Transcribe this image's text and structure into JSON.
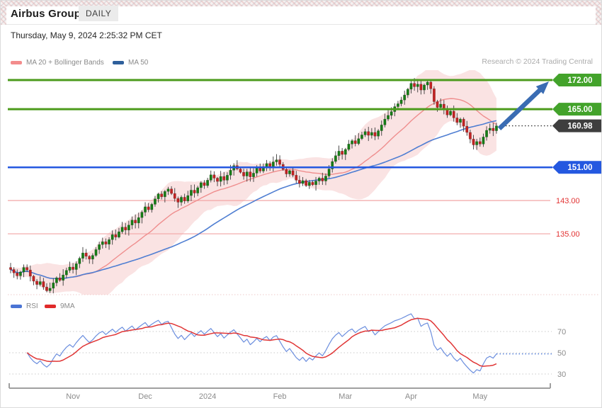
{
  "header": {
    "title": "Airbus Group",
    "timeframe_badge": "DAILY",
    "datetime": "Thursday, May 9, 2024 2:25:32 PM CET",
    "watermark": "Research © 2024 Trading Central"
  },
  "legend_main": [
    {
      "label": "MA 20 + Bollinger Bands",
      "color": "#f38c8c"
    },
    {
      "label": "MA 50",
      "color": "#2e5f9b"
    }
  ],
  "legend_rsi": [
    {
      "label": "RSI",
      "color": "#4a74d4"
    },
    {
      "label": "9MA",
      "color": "#e02a2a"
    }
  ],
  "chart_data": {
    "type": "candlestick+rsi",
    "symbol": "Airbus Group",
    "interval": "DAILY",
    "price_axis_visible_range": [
      120,
      174
    ],
    "x_axis_labels": [
      {
        "text": "Nov",
        "day": 19
      },
      {
        "text": "Dec",
        "day": 41
      },
      {
        "text": "2024",
        "day": 60
      },
      {
        "text": "Feb",
        "day": 82
      },
      {
        "text": "Mar",
        "day": 102
      },
      {
        "text": "Apr",
        "day": 122
      },
      {
        "text": "May",
        "day": 143
      }
    ],
    "closes": [
      126.4,
      125.6,
      124.9,
      125.8,
      126.9,
      126.3,
      124.8,
      123.6,
      122.8,
      123.5,
      122.2,
      121.3,
      121.9,
      123.2,
      124.4,
      123.8,
      125.1,
      126.2,
      127.0,
      126.4,
      127.8,
      129.1,
      130.4,
      129.6,
      128.9,
      129.8,
      131.2,
      132.4,
      133.1,
      132.5,
      133.6,
      134.8,
      134.2,
      135.5,
      136.6,
      135.9,
      137.1,
      138.3,
      137.6,
      138.9,
      140.2,
      141.5,
      140.8,
      142.1,
      143.4,
      144.6,
      143.9,
      145.2,
      145.8,
      144.7,
      143.5,
      142.6,
      143.8,
      142.9,
      144.2,
      145.5,
      144.8,
      146.1,
      147.3,
      146.6,
      147.9,
      149.2,
      148.4,
      147.6,
      148.8,
      147.9,
      149.1,
      150.3,
      151.4,
      150.6,
      149.8,
      148.9,
      149.9,
      148.7,
      149.6,
      150.8,
      150.1,
      151.2,
      151.9,
      151.1,
      152.3,
      152.8,
      151.7,
      150.5,
      149.4,
      150.2,
      149.1,
      147.9,
      147.1,
      147.8,
      146.6,
      147.4,
      146.8,
      147.7,
      148.4,
      147.7,
      148.9,
      150.6,
      152.4,
      153.8,
      154.9,
      154.1,
      155.3,
      156.6,
      157.4,
      156.7,
      157.9,
      158.8,
      159.6,
      158.7,
      159.4,
      158.5,
      159.8,
      161.2,
      162.6,
      163.5,
      164.4,
      165.6,
      166.3,
      167.2,
      168.4,
      169.8,
      171.2,
      170.4,
      171.0,
      169.6,
      170.8,
      171.5,
      169.9,
      166.8,
      165.4,
      166.2,
      164.8,
      163.6,
      164.5,
      162.9,
      161.8,
      162.6,
      160.9,
      159.4,
      157.8,
      156.4,
      157.2,
      156.6,
      158.3,
      159.9,
      160.4,
      159.8,
      160.98
    ],
    "last_price": {
      "value": 160.98,
      "label": "160.98",
      "tag_bg": "#3e3e3e",
      "tag_fg": "#ffffff",
      "dotted_color": "#2a2a2a"
    },
    "levels": [
      {
        "value": 172.0,
        "label": "172.00",
        "kind": "major",
        "line_color": "#4c9b1c",
        "tag_bg": "#43a32b",
        "tag_fg": "#ffffff"
      },
      {
        "value": 165.0,
        "label": "165.00",
        "kind": "major",
        "line_color": "#4c9b1c",
        "tag_bg": "#43a32b",
        "tag_fg": "#ffffff"
      },
      {
        "value": 151.0,
        "label": "151.00",
        "kind": "major",
        "line_color": "#2458e0",
        "tag_bg": "#2458e0",
        "tag_fg": "#ffffff"
      },
      {
        "value": 143.0,
        "label": "143.00",
        "kind": "minor",
        "line_color": "#f2a5a5",
        "text_color": "#e23333"
      },
      {
        "value": 135.0,
        "label": "135.00",
        "kind": "minor",
        "line_color": "#f2a5a5",
        "text_color": "#e23333"
      }
    ],
    "indicators": {
      "ma20_period": 20,
      "bollinger_mult": 2,
      "ma50_period": 50,
      "rsi_period": 14,
      "rsi_ma_period": 9,
      "band_fill": "#f6caca",
      "ma20_color": "#ef8e8e",
      "ma50_color": "#4f7ed2",
      "rsi_color": "#6b8ede",
      "rsi_ma_color": "#e03535"
    },
    "rsi_gridlines": [
      70,
      50,
      30
    ],
    "candle_up_color": "#167d16",
    "candle_down_color": "#c32222",
    "arrow": {
      "to_price": 172.0,
      "color": "#3a6cb3"
    }
  }
}
